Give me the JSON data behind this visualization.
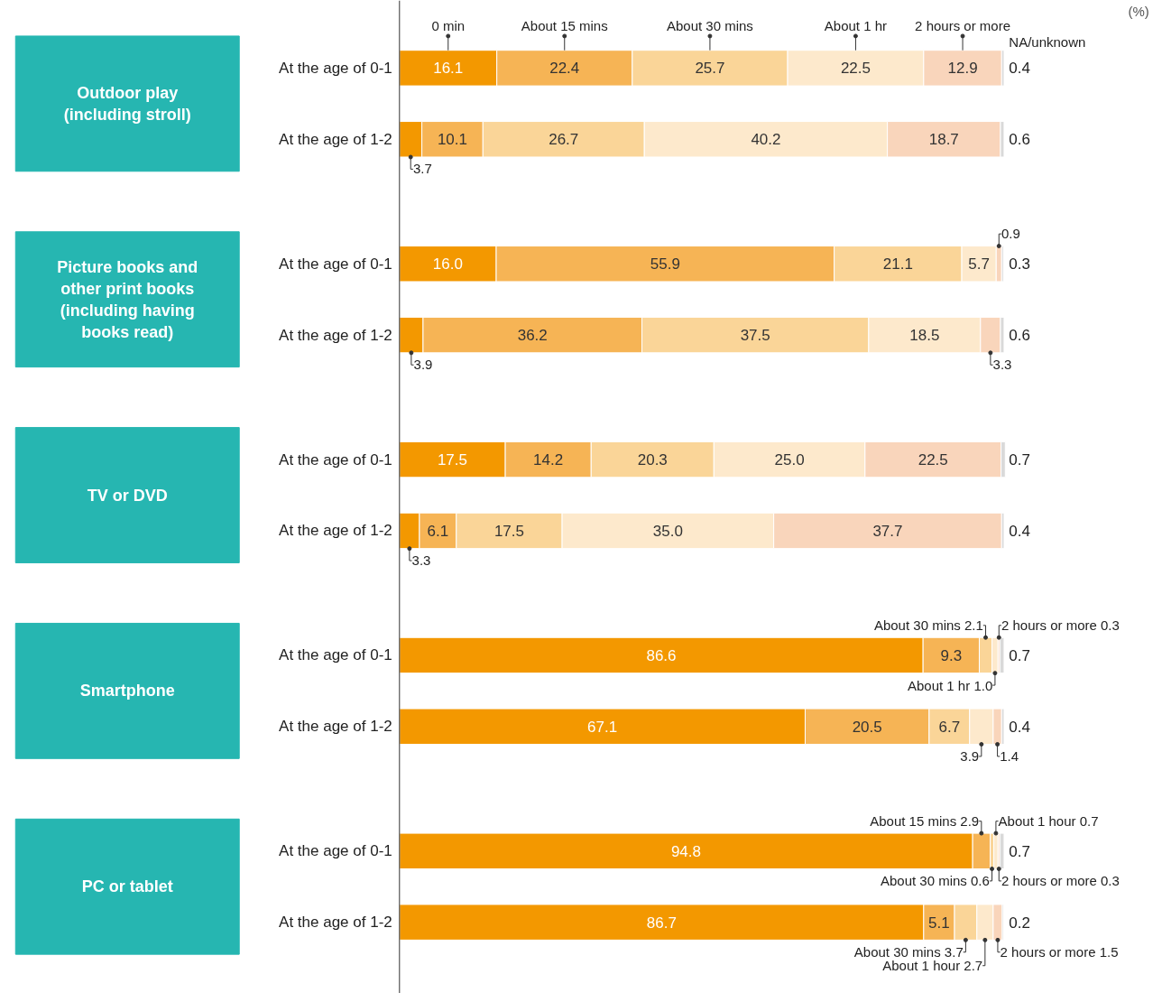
{
  "chart_data": {
    "type": "bar",
    "orientation": "horizontal",
    "stacked": true,
    "categories": [
      "At the age of 0-1",
      "At the age of 1-2",
      "At the age of 0-1",
      "At the age of 1-2",
      "At the age of 0-1",
      "At the age of 1-2",
      "At the age of 0-1",
      "At the age of 1-2",
      "At the age of 0-1",
      "At the age of 1-2"
    ],
    "series": [
      {
        "name": "0 min",
        "color": "#f39800",
        "values": [
          16.1,
          3.7,
          16.0,
          3.9,
          17.5,
          3.3,
          86.6,
          67.1,
          94.8,
          86.7
        ],
        "value_labels": [
          "16.1",
          "3.7",
          "16.0",
          "3.9",
          "17.5",
          "3.3",
          "86.6",
          "67.1",
          "94.8",
          "86.7"
        ]
      },
      {
        "name": "About 15 mins",
        "color": "#f6b455",
        "values": [
          22.4,
          10.1,
          55.9,
          36.2,
          14.2,
          6.1,
          9.3,
          20.5,
          2.9,
          5.1
        ],
        "value_labels": [
          "22.4",
          "10.1",
          "55.9",
          "36.2",
          "14.2",
          "6.1",
          "9.3",
          "20.5",
          "About 15 mins 2.9",
          "5.1"
        ]
      },
      {
        "name": "About 30 mins",
        "color": "#fad598",
        "values": [
          25.7,
          26.7,
          21.1,
          37.5,
          20.3,
          17.5,
          2.1,
          6.7,
          0.6,
          3.7
        ],
        "value_labels": [
          "25.7",
          "26.7",
          "21.1",
          "37.5",
          "20.3",
          "17.5",
          "About 30 mins 2.1",
          "6.7",
          "About 30 mins 0.6",
          "About 30 mins 3.7"
        ]
      },
      {
        "name": "About 1 hr",
        "color": "#fde9cc",
        "values": [
          22.5,
          40.2,
          5.7,
          18.5,
          25.0,
          35.0,
          1.0,
          3.9,
          0.7,
          2.7
        ],
        "value_labels": [
          "22.5",
          "40.2",
          "5.7",
          "18.5",
          "25.0",
          "35.0",
          "About 1 hr 1.0",
          "3.9",
          "About 1 hour 0.7",
          "About 1 hour 2.7"
        ]
      },
      {
        "name": "2 hours or more",
        "color": "#f9d5bb",
        "values": [
          12.9,
          18.7,
          0.9,
          3.3,
          22.5,
          37.7,
          0.3,
          1.4,
          0.3,
          1.5
        ],
        "value_labels": [
          "12.9",
          "18.7",
          "0.9",
          "3.3",
          "22.5",
          "37.7",
          "2 hours or more 0.3",
          "1.4",
          "2 hours or more 0.3",
          "2 hours or more 1.5"
        ]
      },
      {
        "name": "NA/unknown",
        "color": "#d9d9d9",
        "values": [
          0.4,
          0.6,
          0.3,
          0.6,
          0.7,
          0.4,
          0.7,
          0.4,
          0.7,
          0.2
        ],
        "value_labels": [
          "0.4",
          "0.6",
          "0.3",
          "0.6",
          "0.7",
          "0.4",
          "0.7",
          "0.4",
          "0.7",
          "0.2"
        ]
      }
    ],
    "annotations": [
      "Outdoor play (including stroll)",
      "Picture books and other print books (including having books read)",
      "TV or DVD",
      "Smartphone",
      "PC or tablet",
      "(%)"
    ]
  }
}
